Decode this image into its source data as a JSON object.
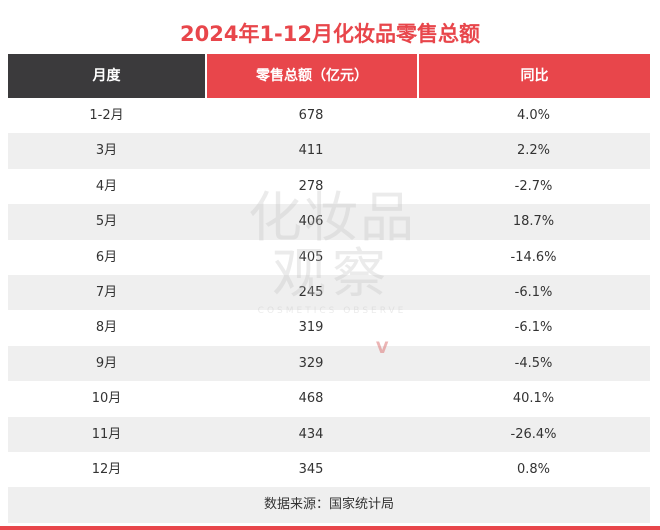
{
  "title": "2024年1-12月化妆品零售总额",
  "headers": [
    "月度",
    "零售总额（亿元）",
    "同比"
  ],
  "rows": [
    {
      "month": "1-2月",
      "sales": "678",
      "yoy": "4.0%"
    },
    {
      "month": "3月",
      "sales": "411",
      "yoy": "2.2%"
    },
    {
      "month": "4月",
      "sales": "278",
      "yoy": "-2.7%"
    },
    {
      "month": "5月",
      "sales": "406",
      "yoy": "18.7%"
    },
    {
      "month": "6月",
      "sales": "405",
      "yoy": "-14.6%"
    },
    {
      "month": "7月",
      "sales": "245",
      "yoy": "-6.1%"
    },
    {
      "month": "8月",
      "sales": "319",
      "yoy": "-6.1%"
    },
    {
      "month": "9月",
      "sales": "329",
      "yoy": "-4.5%"
    },
    {
      "month": "10月",
      "sales": "468",
      "yoy": "40.1%"
    },
    {
      "month": "11月",
      "sales": "434",
      "yoy": "-26.4%"
    },
    {
      "month": "12月",
      "sales": "345",
      "yoy": "0.8%"
    }
  ],
  "source": "数据来源：国家统计局",
  "watermark": {
    "line1": "化妆品",
    "line2": "观察",
    "line3": "COSMETICS OBSERVE",
    "mark": "V"
  },
  "colors": {
    "accent": "#e8464b",
    "header_dark": "#3b3a3c",
    "row_alt": "#efefef"
  }
}
